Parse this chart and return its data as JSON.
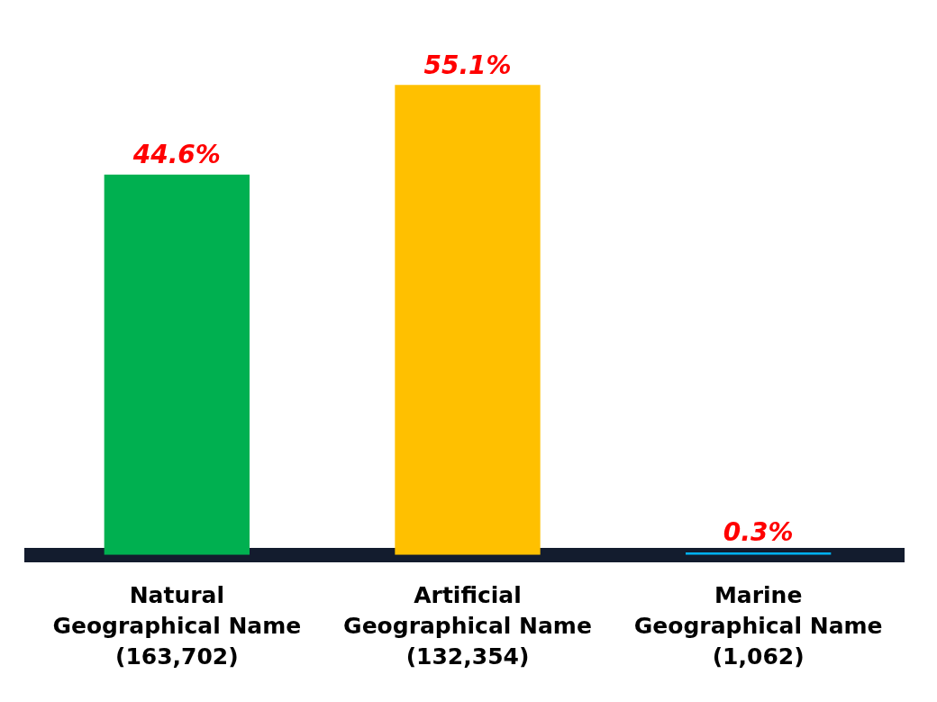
{
  "chart_data": {
    "type": "bar",
    "categories": [
      "Natural\nGeographical Name\n(163,702)",
      "Artificial\nGeographical Name\n(132,354)",
      "Marine\nGeographical Name\n(1,062)"
    ],
    "values": [
      44.6,
      55.1,
      0.3
    ],
    "colors": [
      "#00b050",
      "#ffc000",
      "#00b0f0"
    ],
    "value_labels": [
      "44.6%",
      "55.1%",
      "0.3%"
    ],
    "grid": false,
    "legend": false
  }
}
